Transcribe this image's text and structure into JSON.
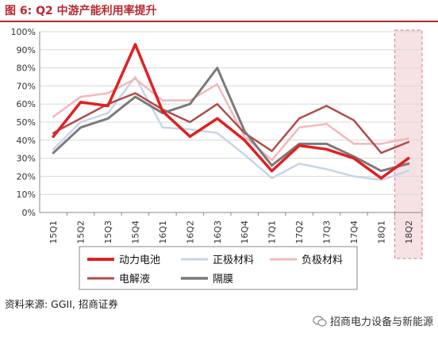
{
  "header": {
    "title": "图 6: Q2 中游产能利用率提升"
  },
  "chart_data": {
    "type": "line",
    "categories": [
      "15Q1",
      "15Q2",
      "15Q3",
      "15Q4",
      "16Q1",
      "16Q2",
      "16Q3",
      "16Q4",
      "17Q1",
      "17Q2",
      "17Q3",
      "17Q4",
      "18Q1",
      "18Q2"
    ],
    "yticks": [
      "0%",
      "10%",
      "20%",
      "30%",
      "40%",
      "50%",
      "60%",
      "70%",
      "80%",
      "90%",
      "100%"
    ],
    "ylim": [
      0,
      100
    ],
    "highlight_category": "18Q2",
    "legend_position": "bottom",
    "series": [
      {
        "name": "动力电池",
        "color": "#e02020",
        "width": 3.5,
        "values": [
          42,
          61,
          59,
          93,
          56,
          42,
          52,
          40,
          23,
          37,
          35,
          30,
          19,
          30
        ]
      },
      {
        "name": "正极材料",
        "color": "#c8d4e8",
        "width": 2.5,
        "values": [
          35,
          50,
          55,
          75,
          47,
          46,
          44,
          32,
          19,
          27,
          24,
          20,
          18,
          23
        ]
      },
      {
        "name": "负极材料",
        "color": "#f2b8bc",
        "width": 2.5,
        "values": [
          53,
          64,
          66,
          74,
          62,
          62,
          71,
          42,
          29,
          47,
          49,
          38,
          38,
          41
        ]
      },
      {
        "name": "电解液",
        "color": "#b24a4a",
        "width": 2.5,
        "values": [
          44,
          52,
          60,
          66,
          57,
          50,
          60,
          44,
          34,
          52,
          59,
          51,
          33,
          39
        ]
      },
      {
        "name": "隔膜",
        "color": "#7a7a7a",
        "width": 3,
        "values": [
          33,
          47,
          52,
          64,
          55,
          60,
          80,
          45,
          26,
          38,
          38,
          31,
          23,
          27
        ]
      }
    ]
  },
  "footer": {
    "source": "资料来源: GGII, 招商证券",
    "watermark": "招商电力设备与新能源",
    "watermark_icon": "wechat-icon"
  }
}
